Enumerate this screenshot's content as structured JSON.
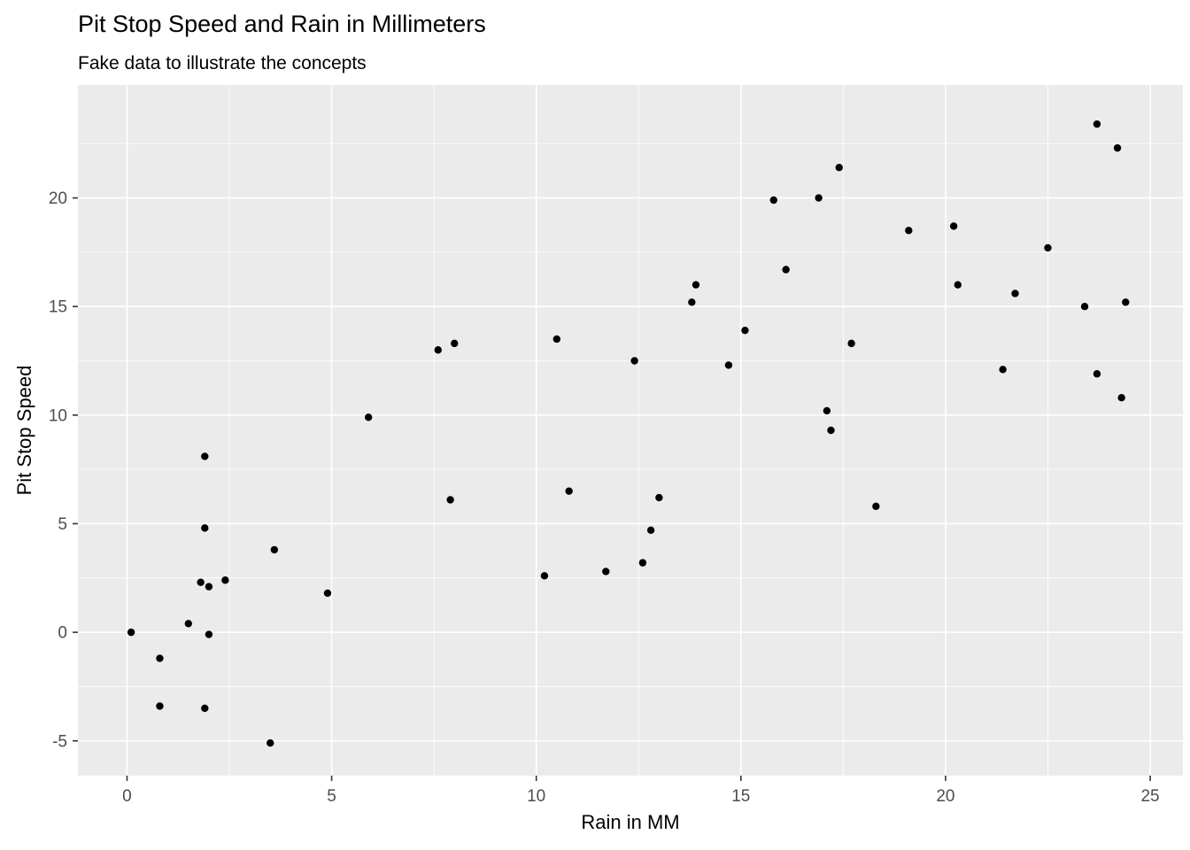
{
  "title": "Pit Stop Speed and Rain in Millimeters",
  "subtitle": "Fake data to illustrate the concepts",
  "chart_data": {
    "type": "scatter",
    "title": "Pit Stop Speed and Rain in Millimeters",
    "subtitle": "Fake data to illustrate the concepts",
    "xlabel": "Rain in MM",
    "ylabel": "Pit Stop Speed",
    "xlim": [
      -1.2,
      25.8
    ],
    "ylim": [
      -6.6,
      25.2
    ],
    "x_ticks": [
      0,
      5,
      10,
      15,
      20,
      25
    ],
    "y_ticks": [
      -5,
      0,
      5,
      10,
      15,
      20
    ],
    "x_minor": [
      2.5,
      7.5,
      12.5,
      17.5,
      22.5
    ],
    "y_minor": [
      -2.5,
      2.5,
      7.5,
      12.5,
      17.5,
      22.5
    ],
    "grid": true,
    "legend": "none",
    "panel_bg": "#EBEBEB",
    "grid_color": "#FFFFFF",
    "tick_color": "#333333",
    "tick_label_color": "#4D4D4D",
    "point_color": "#000000",
    "points": [
      [
        0.1,
        0.0
      ],
      [
        0.8,
        -1.2
      ],
      [
        0.8,
        -3.4
      ],
      [
        1.5,
        0.4
      ],
      [
        1.9,
        8.1
      ],
      [
        1.9,
        4.8
      ],
      [
        1.8,
        2.3
      ],
      [
        2.0,
        2.1
      ],
      [
        2.0,
        -0.1
      ],
      [
        1.9,
        -3.5
      ],
      [
        2.4,
        2.4
      ],
      [
        3.6,
        3.8
      ],
      [
        3.5,
        -5.1
      ],
      [
        4.9,
        1.8
      ],
      [
        5.9,
        9.9
      ],
      [
        7.6,
        13.0
      ],
      [
        8.0,
        13.3
      ],
      [
        7.9,
        6.1
      ],
      [
        10.5,
        13.5
      ],
      [
        10.2,
        2.6
      ],
      [
        10.8,
        6.5
      ],
      [
        11.7,
        2.8
      ],
      [
        12.4,
        12.5
      ],
      [
        12.6,
        3.2
      ],
      [
        12.8,
        4.7
      ],
      [
        13.0,
        6.2
      ],
      [
        13.8,
        15.2
      ],
      [
        13.9,
        16.0
      ],
      [
        14.7,
        12.3
      ],
      [
        15.1,
        13.9
      ],
      [
        15.8,
        19.9
      ],
      [
        16.1,
        16.7
      ],
      [
        16.9,
        20.0
      ],
      [
        17.4,
        21.4
      ],
      [
        17.1,
        10.2
      ],
      [
        17.2,
        9.3
      ],
      [
        17.7,
        13.3
      ],
      [
        18.3,
        5.8
      ],
      [
        19.1,
        18.5
      ],
      [
        20.2,
        18.7
      ],
      [
        20.3,
        16.0
      ],
      [
        21.4,
        12.1
      ],
      [
        21.7,
        15.6
      ],
      [
        22.5,
        17.7
      ],
      [
        23.4,
        15.0
      ],
      [
        23.7,
        23.4
      ],
      [
        23.7,
        11.9
      ],
      [
        24.2,
        22.3
      ],
      [
        24.4,
        15.2
      ],
      [
        24.3,
        10.8
      ]
    ]
  }
}
